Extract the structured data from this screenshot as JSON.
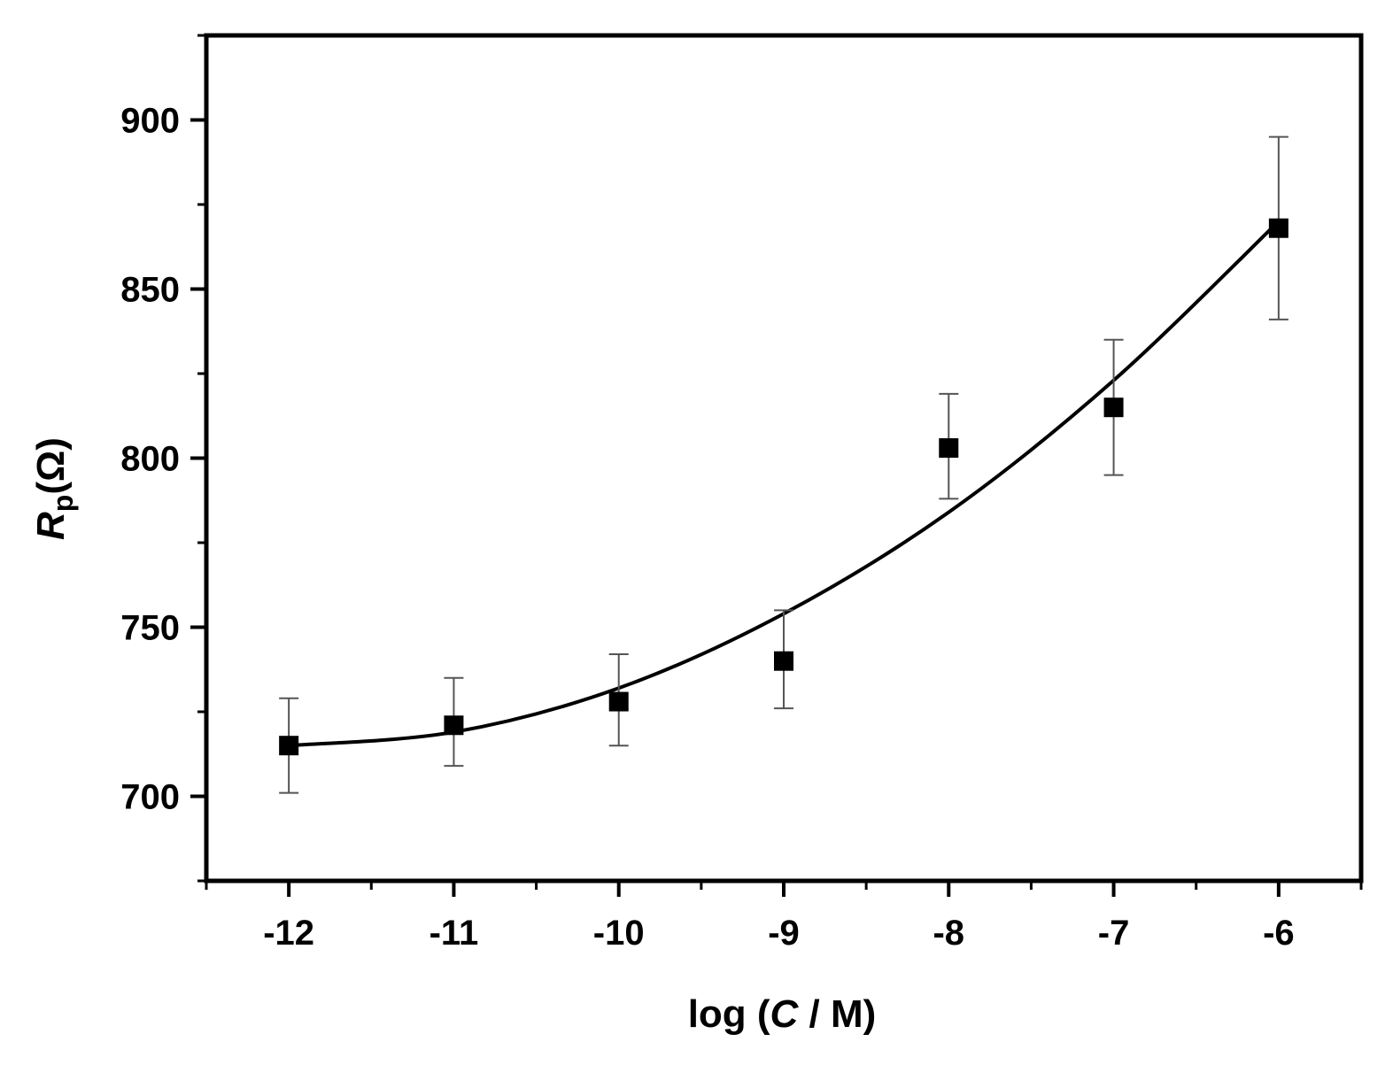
{
  "chart_data": {
    "type": "scatter",
    "title": "",
    "xlabel": {
      "prefix": "log (",
      "symbol": "C",
      "suffix": " / M)"
    },
    "ylabel": {
      "symbol": "R",
      "subscript": "p",
      "unit": "(Ω)"
    },
    "xlim": [
      -12.5,
      -5.5
    ],
    "ylim": [
      675,
      925
    ],
    "x_ticks": [
      -12,
      -11,
      -10,
      -9,
      -8,
      -7,
      -6
    ],
    "x_tick_labels": [
      "-12",
      "-11",
      "-10",
      "-9",
      "-8",
      "-7",
      "-6"
    ],
    "x_minor_ticks": [
      -12.5,
      -11.5,
      -10.5,
      -9.5,
      -8.5,
      -7.5,
      -6.5,
      -5.5
    ],
    "y_ticks": [
      700,
      750,
      800,
      850,
      900
    ],
    "y_tick_labels": [
      "700",
      "750",
      "800",
      "850",
      "900"
    ],
    "y_minor_ticks": [
      675,
      725,
      775,
      825,
      875,
      925
    ],
    "grid": false,
    "series": [
      {
        "marker": "square",
        "color": "#000000",
        "x": [
          -12,
          -11,
          -10,
          -9,
          -8,
          -7,
          -6
        ],
        "y": [
          715,
          721,
          728,
          740,
          803,
          815,
          868
        ],
        "error_low": [
          701,
          709,
          715,
          726,
          788,
          795,
          841
        ],
        "error_high": [
          729,
          735,
          742,
          755,
          819,
          835,
          895
        ]
      }
    ],
    "fit_curve": {
      "type": "line",
      "color": "#000000",
      "x": [
        -12,
        -11,
        -10,
        -9,
        -8,
        -7,
        -6
      ],
      "y": [
        715,
        719,
        732,
        754,
        784,
        823,
        870
      ]
    }
  }
}
